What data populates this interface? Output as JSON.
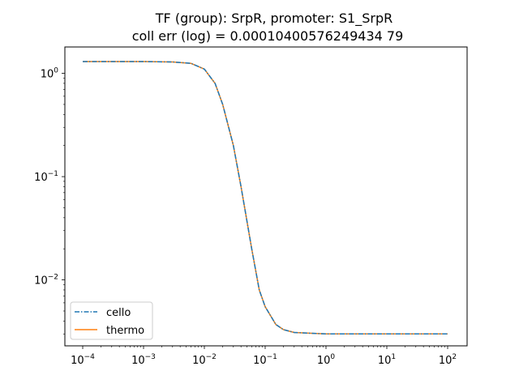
{
  "chart_data": {
    "type": "line",
    "title_lines": [
      "TF (group): SrpR, promoter: S1_SrpR",
      "coll err (log) = 0.00010400576249434 79"
    ],
    "xscale": "log",
    "yscale": "log",
    "xlim": [
      0.0001,
      100
    ],
    "ylim": [
      0.0023,
      1.8
    ],
    "x_ticks": [
      {
        "value": 0.0001,
        "base": "10",
        "exp": "−4"
      },
      {
        "value": 0.001,
        "base": "10",
        "exp": "−3"
      },
      {
        "value": 0.01,
        "base": "10",
        "exp": "−2"
      },
      {
        "value": 0.1,
        "base": "10",
        "exp": "−1"
      },
      {
        "value": 1,
        "base": "10",
        "exp": "0"
      },
      {
        "value": 10,
        "base": "10",
        "exp": "1"
      },
      {
        "value": 100,
        "base": "10",
        "exp": "2"
      }
    ],
    "y_ticks": [
      {
        "value": 0.01,
        "base": "10",
        "exp": "−2"
      },
      {
        "value": 0.1,
        "base": "10",
        "exp": "−1"
      },
      {
        "value": 1,
        "base": "10",
        "exp": "0"
      }
    ],
    "grid": false,
    "legend_position": "lower-left",
    "series": [
      {
        "name": "cello",
        "color": "#1f77b4",
        "style": "dashdot",
        "x": [
          0.0001,
          0.001,
          0.003,
          0.006,
          0.01,
          0.015,
          0.02,
          0.03,
          0.04,
          0.06,
          0.08,
          0.1,
          0.15,
          0.2,
          0.3,
          1,
          10,
          100
        ],
        "y": [
          1.3,
          1.3,
          1.29,
          1.25,
          1.1,
          0.8,
          0.5,
          0.2,
          0.08,
          0.02,
          0.008,
          0.0055,
          0.0037,
          0.0033,
          0.0031,
          0.003,
          0.003,
          0.003
        ]
      },
      {
        "name": "thermo",
        "color": "#ff7f0e",
        "style": "solid",
        "x": [
          0.0001,
          0.001,
          0.003,
          0.006,
          0.01,
          0.015,
          0.02,
          0.03,
          0.04,
          0.06,
          0.08,
          0.1,
          0.15,
          0.2,
          0.3,
          1,
          10,
          100
        ],
        "y": [
          1.3,
          1.3,
          1.29,
          1.25,
          1.1,
          0.8,
          0.5,
          0.2,
          0.08,
          0.02,
          0.008,
          0.0055,
          0.0037,
          0.0033,
          0.0031,
          0.003,
          0.003,
          0.003
        ]
      }
    ]
  }
}
